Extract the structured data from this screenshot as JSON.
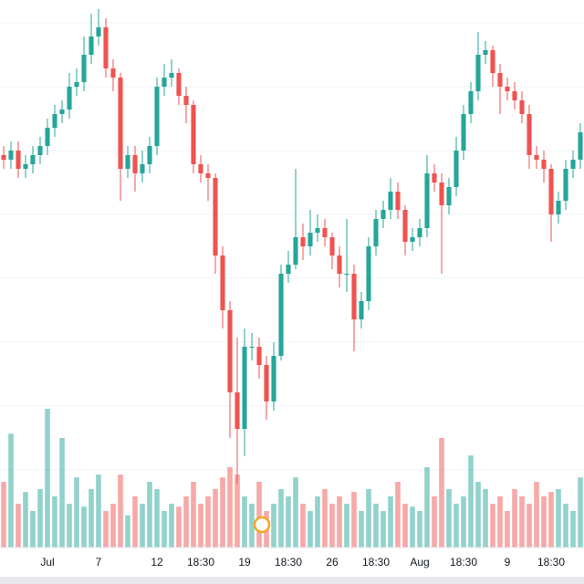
{
  "chart_data": {
    "type": "candlestick",
    "categories": [
      null,
      null,
      null,
      null,
      null,
      null,
      "Jul",
      null,
      null,
      null,
      null,
      null,
      null,
      "7",
      null,
      null,
      null,
      null,
      null,
      null,
      null,
      "12",
      null,
      null,
      null,
      null,
      null,
      "18:30",
      null,
      null,
      null,
      null,
      null,
      "19",
      null,
      null,
      null,
      null,
      null,
      "18:30",
      null,
      null,
      null,
      null,
      null,
      "26",
      null,
      null,
      null,
      null,
      null,
      "18:30",
      null,
      null,
      null,
      null,
      null,
      "Aug",
      null,
      null,
      null,
      null,
      null,
      "18:30",
      null,
      null,
      null,
      null,
      null,
      "9",
      null,
      null,
      null,
      null,
      null,
      "18:30",
      null,
      null,
      null,
      null
    ],
    "open": [
      470,
      465,
      475,
      455,
      460,
      470,
      480,
      500,
      515,
      520,
      545,
      550,
      580,
      600,
      610,
      565,
      555,
      455,
      470,
      450,
      460,
      480,
      545,
      555,
      560,
      535,
      525,
      460,
      450,
      445,
      360,
      300,
      210,
      170,
      260,
      260,
      240,
      200,
      250,
      340,
      350,
      380,
      370,
      385,
      390,
      380,
      360,
      340,
      340,
      290,
      310,
      370,
      400,
      410,
      430,
      410,
      375,
      380,
      390,
      450,
      440,
      415,
      435,
      475,
      515,
      540,
      580,
      585,
      560,
      545,
      540,
      530,
      515,
      470,
      465,
      455,
      405,
      420,
      455,
      465
    ],
    "high": [
      480,
      485,
      485,
      470,
      480,
      490,
      510,
      525,
      530,
      560,
      565,
      600,
      625,
      630,
      620,
      575,
      560,
      480,
      480,
      475,
      490,
      555,
      570,
      575,
      565,
      545,
      530,
      470,
      460,
      450,
      370,
      310,
      270,
      280,
      275,
      270,
      250,
      265,
      350,
      365,
      455,
      395,
      410,
      405,
      400,
      385,
      370,
      400,
      350,
      320,
      380,
      410,
      420,
      445,
      440,
      415,
      390,
      400,
      470,
      460,
      450,
      445,
      490,
      525,
      550,
      605,
      595,
      590,
      570,
      555,
      550,
      540,
      525,
      480,
      475,
      460,
      430,
      465,
      475,
      505
    ],
    "low": [
      455,
      455,
      445,
      445,
      450,
      460,
      470,
      490,
      505,
      510,
      535,
      540,
      570,
      590,
      555,
      540,
      420,
      445,
      430,
      440,
      450,
      470,
      535,
      545,
      525,
      505,
      450,
      440,
      420,
      340,
      280,
      160,
      110,
      140,
      245,
      225,
      180,
      190,
      245,
      330,
      345,
      355,
      360,
      375,
      370,
      345,
      325,
      320,
      255,
      280,
      300,
      360,
      390,
      400,
      400,
      360,
      365,
      370,
      380,
      430,
      340,
      405,
      425,
      465,
      505,
      530,
      570,
      545,
      515,
      530,
      520,
      505,
      455,
      455,
      440,
      375,
      395,
      410,
      445,
      455
    ],
    "close": [
      465,
      475,
      455,
      460,
      470,
      480,
      500,
      515,
      520,
      545,
      550,
      580,
      600,
      610,
      565,
      555,
      455,
      470,
      450,
      460,
      480,
      545,
      555,
      560,
      535,
      525,
      460,
      450,
      445,
      360,
      300,
      210,
      170,
      260,
      260,
      240,
      200,
      250,
      340,
      350,
      380,
      370,
      385,
      390,
      380,
      360,
      340,
      340,
      290,
      310,
      370,
      400,
      410,
      430,
      410,
      375,
      380,
      390,
      450,
      440,
      415,
      435,
      475,
      515,
      540,
      580,
      585,
      560,
      545,
      540,
      530,
      515,
      470,
      465,
      455,
      405,
      420,
      455,
      465,
      495
    ],
    "volume": [
      45,
      78,
      30,
      38,
      25,
      40,
      95,
      35,
      75,
      30,
      48,
      28,
      40,
      50,
      25,
      30,
      50,
      22,
      35,
      30,
      45,
      40,
      25,
      30,
      28,
      35,
      45,
      30,
      35,
      40,
      48,
      55,
      50,
      35,
      30,
      45,
      25,
      30,
      40,
      35,
      48,
      30,
      25,
      35,
      40,
      30,
      35,
      30,
      38,
      25,
      40,
      30,
      25,
      35,
      45,
      30,
      28,
      25,
      55,
      35,
      75,
      40,
      30,
      35,
      63,
      45,
      40,
      30,
      35,
      25,
      40,
      35,
      30,
      45,
      35,
      38,
      40,
      30,
      25,
      48
    ],
    "up_color": "#26a69a",
    "down_color": "#ef5350",
    "ylim": [
      40,
      640
    ],
    "yticks": [
      615,
      545,
      475,
      405,
      335,
      265,
      195,
      125
    ],
    "y2lim": [
      0,
      100
    ],
    "grid": true
  }
}
